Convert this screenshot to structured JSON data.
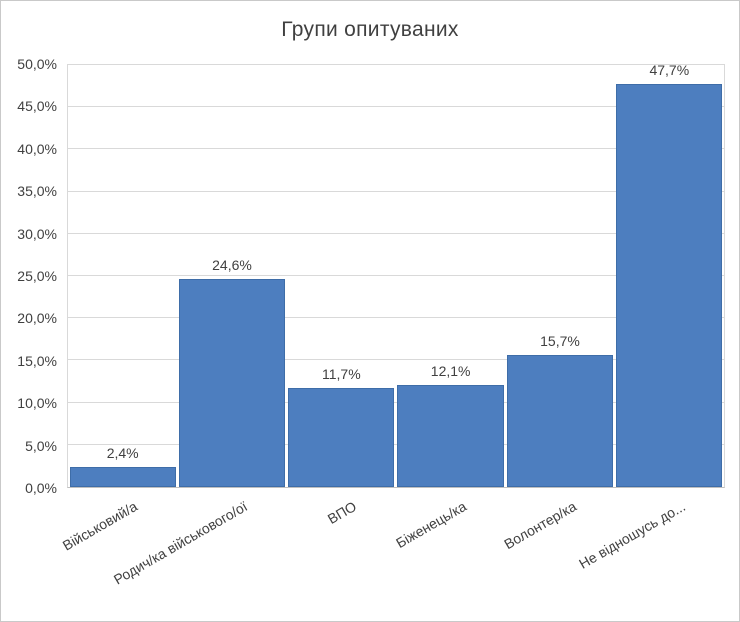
{
  "chart_data": {
    "type": "bar",
    "title": "Групи опитуваних",
    "categories": [
      "Військовий/а",
      "Родич/ка військового/ої",
      "ВПО",
      "Біженець/ка",
      "Волонтер/ка",
      "Не відношусь до..."
    ],
    "values": [
      2.4,
      24.6,
      11.7,
      12.1,
      15.7,
      47.7
    ],
    "data_labels": [
      "2,4%",
      "24,6%",
      "11,7%",
      "12,1%",
      "15,7%",
      "47,7%"
    ],
    "xlabel": "",
    "ylabel": "",
    "ylim": [
      0,
      50
    ],
    "ytick_step": 5,
    "ytick_labels": [
      "0,0%",
      "5,0%",
      "10,0%",
      "15,0%",
      "20,0%",
      "25,0%",
      "30,0%",
      "35,0%",
      "40,0%",
      "45,0%",
      "50,0%"
    ],
    "grid": true,
    "legend": "none",
    "colors": {
      "bar_fill": "#4d7ebf",
      "bar_border": "#3e6da8",
      "gridline": "#d9d9d9",
      "axis_line": "#bfbfbf",
      "text": "#404040",
      "background": "#ffffff"
    }
  }
}
